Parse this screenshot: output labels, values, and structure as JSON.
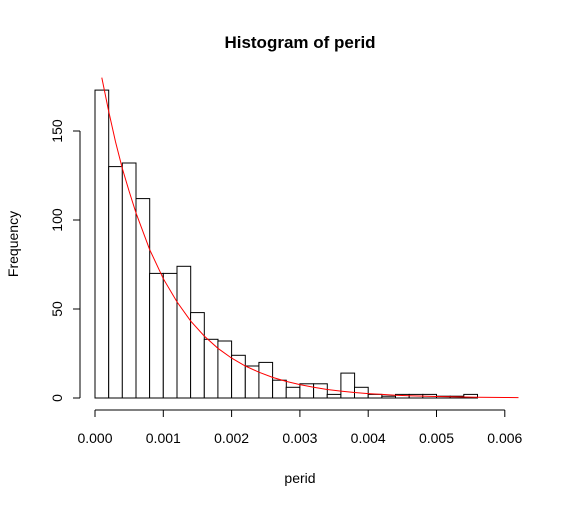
{
  "chart_data": {
    "type": "bar",
    "title": "Histogram of perid",
    "xlabel": "perid",
    "ylabel": "Frequency",
    "xlim": [
      0,
      0.0062
    ],
    "ylim": [
      0,
      180
    ],
    "x_ticks": [
      0,
      0.001,
      0.002,
      0.003,
      0.004,
      0.005,
      0.006
    ],
    "x_tick_labels": [
      "0.000",
      "0.001",
      "0.002",
      "0.003",
      "0.004",
      "0.005",
      "0.006"
    ],
    "y_ticks": [
      0,
      50,
      100,
      150
    ],
    "y_tick_labels": [
      "0",
      "50",
      "100",
      "150"
    ],
    "bins": [
      {
        "start": 0.0,
        "end": 0.0002,
        "count": 173
      },
      {
        "start": 0.0002,
        "end": 0.0004,
        "count": 130
      },
      {
        "start": 0.0004,
        "end": 0.0006,
        "count": 132
      },
      {
        "start": 0.0006,
        "end": 0.0008,
        "count": 112
      },
      {
        "start": 0.0008,
        "end": 0.001,
        "count": 70
      },
      {
        "start": 0.001,
        "end": 0.0012,
        "count": 70
      },
      {
        "start": 0.0012,
        "end": 0.0014,
        "count": 74
      },
      {
        "start": 0.0014,
        "end": 0.0016,
        "count": 48
      },
      {
        "start": 0.0016,
        "end": 0.0018,
        "count": 33
      },
      {
        "start": 0.0018,
        "end": 0.002,
        "count": 32
      },
      {
        "start": 0.002,
        "end": 0.0022,
        "count": 24
      },
      {
        "start": 0.0022,
        "end": 0.0024,
        "count": 18
      },
      {
        "start": 0.0024,
        "end": 0.0026,
        "count": 20
      },
      {
        "start": 0.0026,
        "end": 0.0028,
        "count": 10
      },
      {
        "start": 0.0028,
        "end": 0.003,
        "count": 6
      },
      {
        "start": 0.003,
        "end": 0.0032,
        "count": 8
      },
      {
        "start": 0.0032,
        "end": 0.0034,
        "count": 8
      },
      {
        "start": 0.0034,
        "end": 0.0036,
        "count": 2
      },
      {
        "start": 0.0036,
        "end": 0.0038,
        "count": 14
      },
      {
        "start": 0.0038,
        "end": 0.004,
        "count": 6
      },
      {
        "start": 0.004,
        "end": 0.0042,
        "count": 2
      },
      {
        "start": 0.0042,
        "end": 0.0044,
        "count": 1
      },
      {
        "start": 0.0044,
        "end": 0.0046,
        "count": 2
      },
      {
        "start": 0.0046,
        "end": 0.0048,
        "count": 2
      },
      {
        "start": 0.0048,
        "end": 0.005,
        "count": 2
      },
      {
        "start": 0.005,
        "end": 0.0052,
        "count": 1
      },
      {
        "start": 0.0052,
        "end": 0.0054,
        "count": 1
      },
      {
        "start": 0.0054,
        "end": 0.0056,
        "count": 2
      }
    ],
    "overlay_curve": {
      "type": "line",
      "color": "#ff0000",
      "x": [
        0.0001,
        0.0002,
        0.0003,
        0.0004,
        0.0005,
        0.0006,
        0.0008,
        0.001,
        0.0012,
        0.0014,
        0.0016,
        0.0018,
        0.002,
        0.0022,
        0.0024,
        0.0026,
        0.0028,
        0.003,
        0.0032,
        0.0034,
        0.0036,
        0.0038,
        0.004,
        0.0042,
        0.0044,
        0.0046,
        0.0048,
        0.005,
        0.0052,
        0.0054,
        0.0056,
        0.0058,
        0.006,
        0.0062
      ],
      "y": [
        180,
        161,
        144,
        129,
        116,
        104,
        83.5,
        67,
        54,
        43.3,
        34.8,
        27.9,
        22.4,
        18.0,
        14.5,
        11.6,
        9.3,
        7.5,
        6.0,
        4.8,
        3.9,
        3.1,
        2.5,
        2.0,
        1.6,
        1.3,
        1.05,
        0.84,
        0.68,
        0.54,
        0.44,
        0.35,
        0.28,
        0.23
      ]
    }
  }
}
